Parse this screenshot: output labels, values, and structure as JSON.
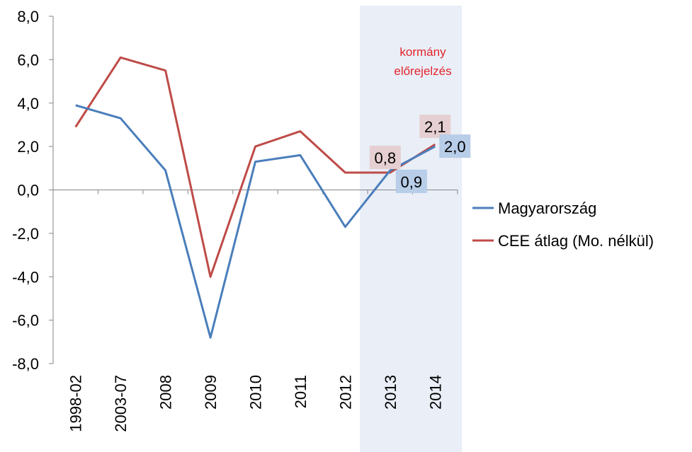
{
  "chart_data": {
    "type": "line",
    "categories": [
      "1998-02",
      "2003-07",
      "2008",
      "2009",
      "2010",
      "2011",
      "2012",
      "2013",
      "2014"
    ],
    "series": [
      {
        "name": "Magyarország",
        "color": "#4a7ebb",
        "values": [
          3.9,
          3.3,
          0.9,
          -6.8,
          1.3,
          1.6,
          -1.7,
          0.9,
          2.0
        ]
      },
      {
        "name": "CEE átlag (Mo. nélkül)",
        "color": "#be4b48",
        "values": [
          2.9,
          6.1,
          5.5,
          -4.0,
          2.0,
          2.7,
          0.8,
          0.8,
          2.1
        ]
      }
    ],
    "y_ticks": [
      "8,0",
      "6,0",
      "4,0",
      "2,0",
      "0,0",
      "-2,0",
      "-4,0",
      "-6,0",
      "-8,0"
    ],
    "ylim": [
      -8,
      8
    ],
    "grid": false,
    "legend_position": "right",
    "shaded_region": {
      "categories": [
        "2013",
        "2014"
      ],
      "color": "#e9eef7"
    },
    "annotation": {
      "lines": [
        "kormány",
        "előrejelzés"
      ],
      "color": "#e3242b"
    },
    "data_labels": [
      {
        "text": "0,8",
        "series": 1,
        "category": "2013",
        "box_color": "#e6cfd2"
      },
      {
        "text": "2,1",
        "series": 1,
        "category": "2014",
        "box_color": "#e6cfd2"
      },
      {
        "text": "0,9",
        "series": 0,
        "category": "2013",
        "box_color": "#b7cde8"
      },
      {
        "text": "2,0",
        "series": 0,
        "category": "2014",
        "box_color": "#b7cde8"
      }
    ]
  }
}
